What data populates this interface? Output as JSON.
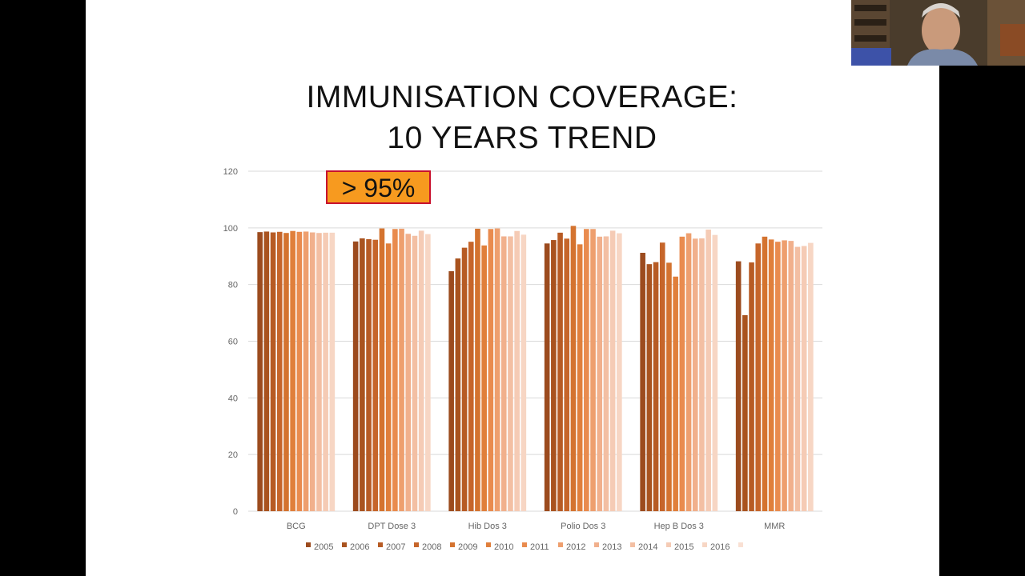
{
  "slide": {
    "title_line1": "IMMUNISATION COVERAGE:",
    "title_line2": "10 YEARS TREND",
    "callout": "> 95%"
  },
  "colors": {
    "background": "#ffffff",
    "gridline": "#d9d9d9",
    "callout_fill": "#f79a1f",
    "callout_border": "#c8102e"
  },
  "chart_data": {
    "type": "bar",
    "categories": [
      "BCG",
      "DPT Dose 3",
      "Hib Dos 3",
      "Polio Dos 3",
      "Hep B Dos 3",
      "MMR"
    ],
    "ylim": [
      0,
      120
    ],
    "yticks": [
      0,
      20,
      40,
      60,
      80,
      100,
      120
    ],
    "grid": true,
    "legend_position": "bottom",
    "series": [
      {
        "name": "2005",
        "color": "#9c4b1e",
        "values": [
          98.5,
          95.2,
          84.7,
          94.5,
          91.2,
          88.2
        ]
      },
      {
        "name": "2006",
        "color": "#a9531f",
        "values": [
          98.7,
          96.3,
          89.2,
          95.7,
          87.2,
          69.2
        ]
      },
      {
        "name": "2007",
        "color": "#b75b24",
        "values": [
          98.4,
          96.0,
          93.0,
          98.3,
          87.9,
          87.8
        ]
      },
      {
        "name": "2008",
        "color": "#c6652a",
        "values": [
          98.6,
          95.8,
          95.1,
          96.2,
          94.8,
          94.5
        ]
      },
      {
        "name": "2009",
        "color": "#d4732f",
        "values": [
          98.2,
          99.8,
          99.7,
          100.7,
          87.7,
          96.9
        ]
      },
      {
        "name": "2010",
        "color": "#e07f3b",
        "values": [
          98.9,
          94.5,
          93.8,
          94.2,
          82.8,
          95.9
        ]
      },
      {
        "name": "2011",
        "color": "#e98b4e",
        "values": [
          98.6,
          99.6,
          99.6,
          99.6,
          96.9,
          95.1
        ]
      },
      {
        "name": "2012",
        "color": "#ee9f6e",
        "values": [
          98.7,
          99.7,
          99.8,
          99.6,
          98.1,
          95.6
        ]
      },
      {
        "name": "2013",
        "color": "#f1b08c",
        "values": [
          98.4,
          97.9,
          97.0,
          96.9,
          96.2,
          95.4
        ]
      },
      {
        "name": "2014",
        "color": "#f3bfa3",
        "values": [
          98.2,
          97.2,
          97.0,
          97.0,
          96.3,
          93.3
        ]
      },
      {
        "name": "2015",
        "color": "#f5cbb5",
        "values": [
          98.3,
          99.0,
          98.9,
          99.0,
          99.4,
          93.6
        ]
      },
      {
        "name": "2016",
        "color": "#f7d6c4",
        "values": [
          98.3,
          97.8,
          97.6,
          98.1,
          97.5,
          94.7
        ]
      }
    ]
  }
}
